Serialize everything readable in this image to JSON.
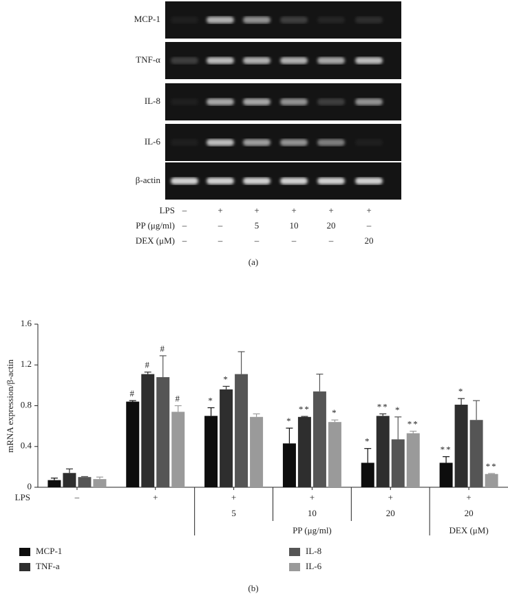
{
  "gel": {
    "rows": [
      "MCP-1",
      "TNF-α",
      "IL-8",
      "IL-6",
      "β-actin"
    ],
    "conditions": [
      {
        "label": "LPS",
        "values": [
          "–",
          "+",
          "+",
          "+",
          "+",
          "+"
        ]
      },
      {
        "label": "PP (μg/ml)",
        "values": [
          "–",
          "–",
          "5",
          "10",
          "20",
          "–"
        ]
      },
      {
        "label": "DEX (μM)",
        "values": [
          "–",
          "–",
          "–",
          "–",
          "–",
          "20"
        ]
      }
    ],
    "panel_label": "(a)"
  },
  "chart_data": {
    "type": "bar",
    "y_label": "mRNA expression/β-actin",
    "category_axis_label": "LPS",
    "categories": [
      "–",
      "+",
      "+",
      "+",
      "+",
      "+"
    ],
    "dose_labels": [
      null,
      null,
      "5",
      "10",
      "20",
      "20"
    ],
    "group_labels": [
      null,
      null,
      "PP (μg/ml)",
      "PP (μg/ml)",
      "PP (μg/ml)",
      "DEX (μM)"
    ],
    "ylim": [
      0,
      1.6
    ],
    "yticks": [
      0,
      0.4,
      0.8,
      1.2,
      1.6
    ],
    "series": [
      {
        "name": "MCP-1",
        "color": "#0d0d0d",
        "values": [
          0.07,
          0.84,
          0.7,
          0.43,
          0.24,
          0.24
        ],
        "errors": [
          0.02,
          0.01,
          0.08,
          0.15,
          0.14,
          0.06
        ],
        "significance": [
          null,
          "#",
          "*",
          "*",
          "*",
          "**"
        ]
      },
      {
        "name": "TNF-a",
        "color": "#2e2e2e",
        "values": [
          0.14,
          1.11,
          0.96,
          0.69,
          0.7,
          0.81
        ],
        "errors": [
          0.04,
          0.02,
          0.03,
          0.005,
          0.02,
          0.06
        ],
        "significance": [
          null,
          "#",
          "*",
          "**",
          "**",
          "*"
        ]
      },
      {
        "name": "IL-8",
        "color": "#555555",
        "values": [
          0.1,
          1.08,
          1.11,
          0.94,
          0.47,
          0.66
        ],
        "errors": [
          0.005,
          0.21,
          0.22,
          0.17,
          0.22,
          0.19
        ],
        "significance": [
          null,
          "#",
          null,
          null,
          "*",
          null
        ]
      },
      {
        "name": "IL-6",
        "color": "#9a9a9a",
        "values": [
          0.08,
          0.74,
          0.69,
          0.64,
          0.53,
          0.13
        ],
        "errors": [
          0.02,
          0.06,
          0.03,
          0.02,
          0.02,
          0.005
        ],
        "significance": [
          null,
          "#",
          null,
          "*",
          "**",
          "**"
        ]
      }
    ],
    "panel_label": "(b)"
  }
}
